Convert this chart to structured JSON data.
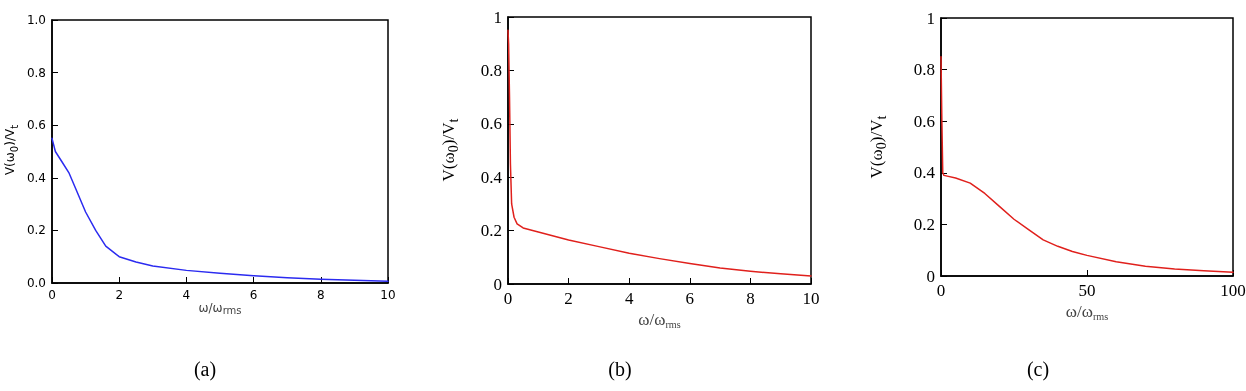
{
  "chart_data": [
    {
      "type": "line",
      "xlabel": "ω/ω$_{rms}$",
      "ylabel": "V(ω$_{0}$)/V$_{t}$",
      "annotations": [
        "(a)"
      ],
      "xlim": [
        0,
        10
      ],
      "xticks": [
        0,
        2,
        4,
        6,
        8,
        10
      ],
      "ylim": [
        0,
        1
      ],
      "yticks": [
        {
          "value": 0,
          "label": "0.0"
        },
        0.2,
        0.4,
        0.6,
        0.8,
        {
          "value": 1,
          "label": "1.0"
        }
      ],
      "grid": false,
      "marker": "none",
      "line_style": "solid",
      "series": [
        {
          "color": "#2b2bf0",
          "x": [
            0,
            0.1,
            0.3,
            0.5,
            0.7,
            1,
            1.3,
            1.6,
            2,
            2.5,
            3,
            4,
            5,
            6,
            7,
            8,
            9,
            10
          ],
          "values": [
            0.55,
            0.5,
            0.46,
            0.42,
            0.36,
            0.27,
            0.2,
            0.14,
            0.1,
            0.08,
            0.065,
            0.048,
            0.037,
            0.028,
            0.02,
            0.014,
            0.01,
            0.007
          ]
        }
      ]
    },
    {
      "type": "line",
      "xlabel": "ω/ω$_{rms}$",
      "ylabel": "V(ω$_{0}$)/V$_{t}$",
      "annotations": [
        "(b)"
      ],
      "xlim": [
        0,
        10
      ],
      "xticks": [
        0,
        2,
        4,
        6,
        8,
        10
      ],
      "ylim": [
        0,
        1
      ],
      "yticks": [
        0,
        0.2,
        0.4,
        0.6,
        0.8,
        1
      ],
      "grid": false,
      "marker": "none",
      "line_style": "solid",
      "series": [
        {
          "color": "#e0201c",
          "x": [
            0,
            0.02,
            0.05,
            0.08,
            0.12,
            0.2,
            0.3,
            0.5,
            1,
            2,
            3,
            4,
            5,
            6,
            7,
            8,
            9,
            10
          ],
          "values": [
            0.95,
            0.9,
            0.7,
            0.45,
            0.3,
            0.25,
            0.225,
            0.21,
            0.195,
            0.165,
            0.14,
            0.115,
            0.095,
            0.077,
            0.06,
            0.048,
            0.038,
            0.03
          ]
        }
      ]
    },
    {
      "type": "line",
      "xlabel": "ω/ω$_{rms}$",
      "ylabel": "V(ω$_{0}$)/V$_{t}$",
      "annotations": [
        "(c)"
      ],
      "xlim": [
        0,
        100
      ],
      "xticks": [
        0,
        50,
        100
      ],
      "ylim": [
        0,
        1
      ],
      "yticks": [
        0,
        0.2,
        0.4,
        0.6,
        0.8,
        1
      ],
      "grid": false,
      "marker": "none",
      "line_style": "solid",
      "series": [
        {
          "color": "#e0201c",
          "x": [
            0,
            0.3,
            0.6,
            1,
            5,
            10,
            15,
            20,
            25,
            30,
            35,
            40,
            45,
            50,
            60,
            70,
            80,
            90,
            100
          ],
          "values": [
            0.85,
            0.6,
            0.4,
            0.39,
            0.38,
            0.36,
            0.32,
            0.27,
            0.22,
            0.18,
            0.14,
            0.115,
            0.095,
            0.08,
            0.055,
            0.038,
            0.027,
            0.02,
            0.015
          ]
        }
      ]
    }
  ]
}
